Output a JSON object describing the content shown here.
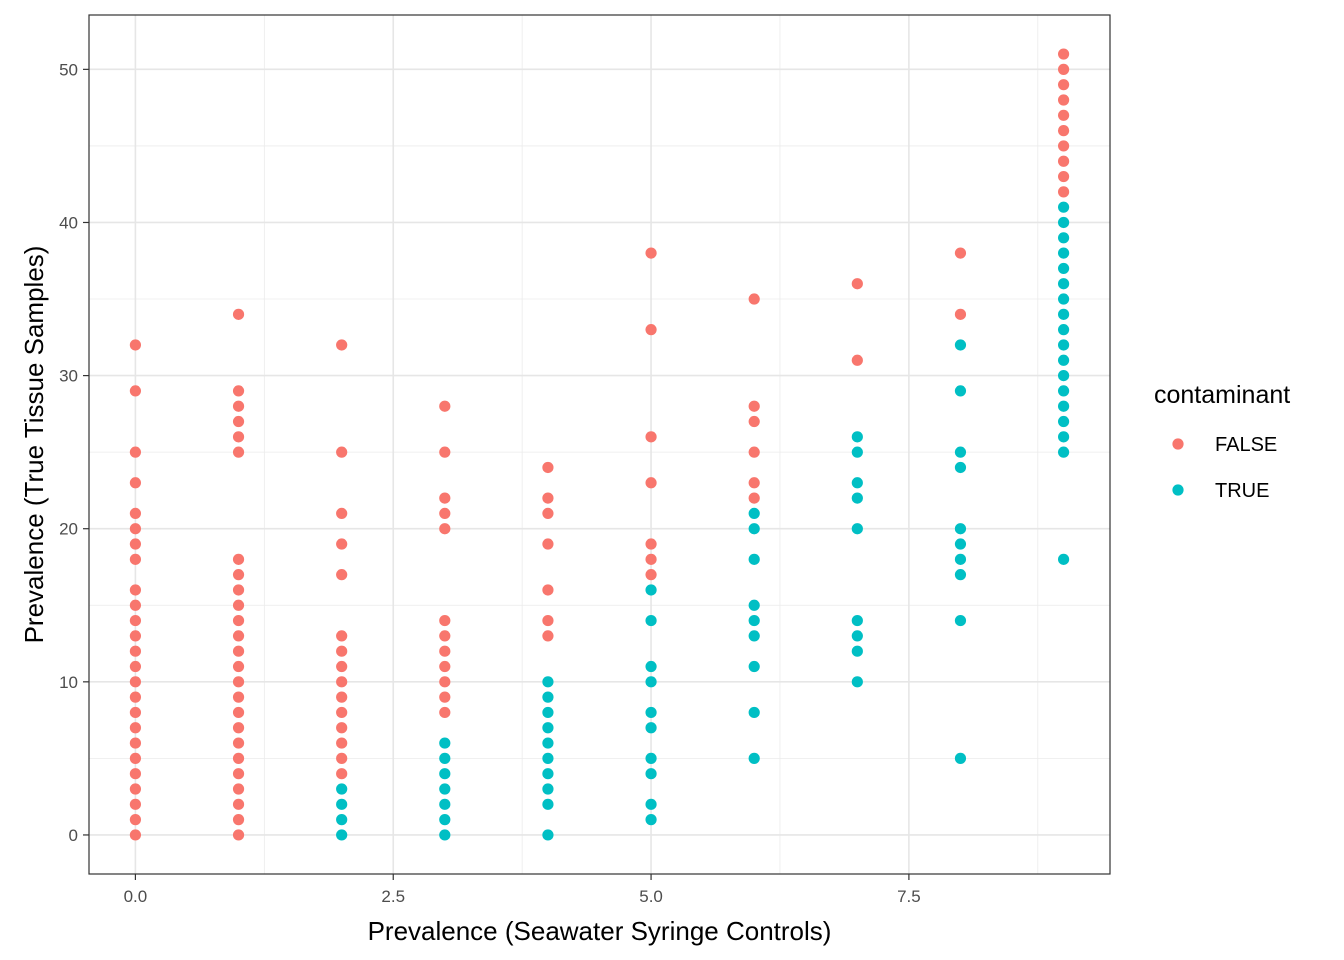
{
  "chart_data": {
    "type": "scatter",
    "xlabel": "Prevalence (Seawater Syringe Controls)",
    "ylabel": "Prevalence (True Tissue Samples)",
    "xlim": [
      -0.45,
      9.45
    ],
    "ylim": [
      -2.55,
      53.55
    ],
    "x_ticks": [
      0,
      2.5,
      5,
      7.5
    ],
    "x_tick_labels": [
      "0.0",
      "2.5",
      "5.0",
      "7.5"
    ],
    "y_ticks": [
      0,
      10,
      20,
      30,
      40,
      50
    ],
    "y_tick_labels": [
      "0",
      "10",
      "20",
      "30",
      "40",
      "50"
    ],
    "grid": true,
    "legend": {
      "title": "contaminant",
      "position": "right",
      "entries": [
        {
          "label": "FALSE",
          "color": "#F8766D"
        },
        {
          "label": "TRUE",
          "color": "#00BFC4"
        }
      ]
    },
    "series": [
      {
        "name": "FALSE",
        "color": "#F8766D",
        "points": [
          [
            0,
            0
          ],
          [
            0,
            1
          ],
          [
            0,
            2
          ],
          [
            0,
            3
          ],
          [
            0,
            4
          ],
          [
            0,
            5
          ],
          [
            0,
            6
          ],
          [
            0,
            7
          ],
          [
            0,
            8
          ],
          [
            0,
            9
          ],
          [
            0,
            10
          ],
          [
            0,
            11
          ],
          [
            0,
            12
          ],
          [
            0,
            13
          ],
          [
            0,
            14
          ],
          [
            0,
            15
          ],
          [
            0,
            16
          ],
          [
            0,
            18
          ],
          [
            0,
            19
          ],
          [
            0,
            20
          ],
          [
            0,
            21
          ],
          [
            0,
            23
          ],
          [
            0,
            25
          ],
          [
            0,
            29
          ],
          [
            0,
            32
          ],
          [
            1,
            0
          ],
          [
            1,
            1
          ],
          [
            1,
            2
          ],
          [
            1,
            3
          ],
          [
            1,
            4
          ],
          [
            1,
            5
          ],
          [
            1,
            6
          ],
          [
            1,
            7
          ],
          [
            1,
            8
          ],
          [
            1,
            9
          ],
          [
            1,
            10
          ],
          [
            1,
            11
          ],
          [
            1,
            12
          ],
          [
            1,
            13
          ],
          [
            1,
            14
          ],
          [
            1,
            15
          ],
          [
            1,
            16
          ],
          [
            1,
            17
          ],
          [
            1,
            18
          ],
          [
            1,
            25
          ],
          [
            1,
            26
          ],
          [
            1,
            27
          ],
          [
            1,
            28
          ],
          [
            1,
            29
          ],
          [
            1,
            34
          ],
          [
            2,
            4
          ],
          [
            2,
            5
          ],
          [
            2,
            6
          ],
          [
            2,
            7
          ],
          [
            2,
            8
          ],
          [
            2,
            9
          ],
          [
            2,
            10
          ],
          [
            2,
            11
          ],
          [
            2,
            12
          ],
          [
            2,
            13
          ],
          [
            2,
            17
          ],
          [
            2,
            19
          ],
          [
            2,
            21
          ],
          [
            2,
            25
          ],
          [
            2,
            32
          ],
          [
            3,
            8
          ],
          [
            3,
            9
          ],
          [
            3,
            10
          ],
          [
            3,
            11
          ],
          [
            3,
            12
          ],
          [
            3,
            13
          ],
          [
            3,
            14
          ],
          [
            3,
            20
          ],
          [
            3,
            21
          ],
          [
            3,
            22
          ],
          [
            3,
            25
          ],
          [
            3,
            28
          ],
          [
            4,
            13
          ],
          [
            4,
            14
          ],
          [
            4,
            16
          ],
          [
            4,
            19
          ],
          [
            4,
            21
          ],
          [
            4,
            22
          ],
          [
            4,
            24
          ],
          [
            5,
            17
          ],
          [
            5,
            18
          ],
          [
            5,
            19
          ],
          [
            5,
            23
          ],
          [
            5,
            26
          ],
          [
            5,
            33
          ],
          [
            5,
            38
          ],
          [
            6,
            22
          ],
          [
            6,
            23
          ],
          [
            6,
            25
          ],
          [
            6,
            27
          ],
          [
            6,
            28
          ],
          [
            6,
            35
          ],
          [
            7,
            31
          ],
          [
            7,
            36
          ],
          [
            8,
            34
          ],
          [
            8,
            38
          ],
          [
            9,
            42
          ],
          [
            9,
            43
          ],
          [
            9,
            44
          ],
          [
            9,
            45
          ],
          [
            9,
            46
          ],
          [
            9,
            47
          ],
          [
            9,
            48
          ],
          [
            9,
            49
          ],
          [
            9,
            50
          ],
          [
            9,
            51
          ]
        ]
      },
      {
        "name": "TRUE",
        "color": "#00BFC4",
        "points": [
          [
            2,
            0
          ],
          [
            2,
            1
          ],
          [
            2,
            2
          ],
          [
            2,
            3
          ],
          [
            3,
            0
          ],
          [
            3,
            1
          ],
          [
            3,
            2
          ],
          [
            3,
            3
          ],
          [
            3,
            4
          ],
          [
            3,
            5
          ],
          [
            3,
            6
          ],
          [
            4,
            0
          ],
          [
            4,
            2
          ],
          [
            4,
            3
          ],
          [
            4,
            4
          ],
          [
            4,
            5
          ],
          [
            4,
            6
          ],
          [
            4,
            7
          ],
          [
            4,
            8
          ],
          [
            4,
            9
          ],
          [
            4,
            10
          ],
          [
            5,
            1
          ],
          [
            5,
            2
          ],
          [
            5,
            4
          ],
          [
            5,
            5
          ],
          [
            5,
            7
          ],
          [
            5,
            8
          ],
          [
            5,
            10
          ],
          [
            5,
            11
          ],
          [
            5,
            14
          ],
          [
            5,
            16
          ],
          [
            6,
            5
          ],
          [
            6,
            8
          ],
          [
            6,
            11
          ],
          [
            6,
            13
          ],
          [
            6,
            14
          ],
          [
            6,
            15
          ],
          [
            6,
            18
          ],
          [
            6,
            20
          ],
          [
            6,
            21
          ],
          [
            7,
            10
          ],
          [
            7,
            12
          ],
          [
            7,
            13
          ],
          [
            7,
            14
          ],
          [
            7,
            20
          ],
          [
            7,
            22
          ],
          [
            7,
            23
          ],
          [
            7,
            25
          ],
          [
            7,
            26
          ],
          [
            8,
            5
          ],
          [
            8,
            14
          ],
          [
            8,
            17
          ],
          [
            8,
            18
          ],
          [
            8,
            19
          ],
          [
            8,
            20
          ],
          [
            8,
            24
          ],
          [
            8,
            25
          ],
          [
            8,
            29
          ],
          [
            8,
            32
          ],
          [
            9,
            18
          ],
          [
            9,
            25
          ],
          [
            9,
            26
          ],
          [
            9,
            27
          ],
          [
            9,
            28
          ],
          [
            9,
            29
          ],
          [
            9,
            30
          ],
          [
            9,
            31
          ],
          [
            9,
            32
          ],
          [
            9,
            33
          ],
          [
            9,
            34
          ],
          [
            9,
            35
          ],
          [
            9,
            36
          ],
          [
            9,
            37
          ],
          [
            9,
            38
          ],
          [
            9,
            39
          ],
          [
            9,
            40
          ],
          [
            9,
            41
          ]
        ]
      }
    ]
  }
}
